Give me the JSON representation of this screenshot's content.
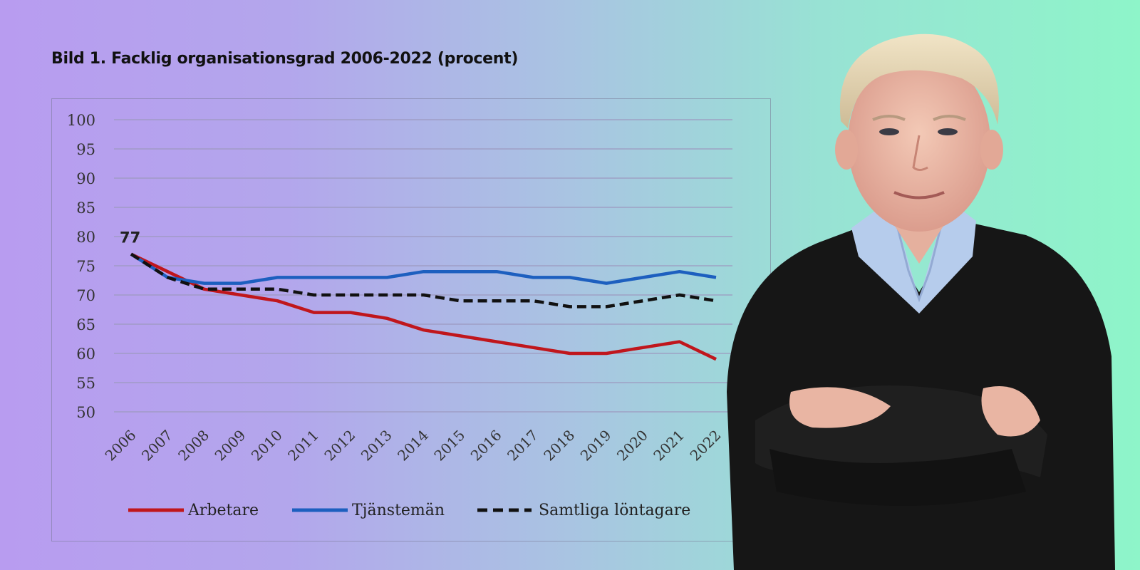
{
  "chart_data": {
    "type": "line",
    "title": "Bild 1. Facklig organisationsgrad 2006-2022 (procent)",
    "x": [
      "2006",
      "2007",
      "2008",
      "2009",
      "2010",
      "2011",
      "2012",
      "2013",
      "2014",
      "2015",
      "2016",
      "2017",
      "2018",
      "2019",
      "2020",
      "2021",
      "2022"
    ],
    "ylim": [
      50,
      100
    ],
    "yticks": [
      100,
      95,
      90,
      85,
      80,
      75,
      70,
      65,
      60,
      55,
      50
    ],
    "grid": true,
    "legend_position": "bottom",
    "series": [
      {
        "name": "Arbetare",
        "color": "#c0161c",
        "style": "solid",
        "values": [
          77,
          74,
          71,
          70,
          69,
          67,
          67,
          66,
          64,
          63,
          62,
          61,
          60,
          60,
          61,
          62,
          59
        ]
      },
      {
        "name": "Tjänstemän",
        "color": "#1d5fbf",
        "style": "solid",
        "values": [
          77,
          73,
          72,
          72,
          73,
          73,
          73,
          73,
          74,
          74,
          74,
          73,
          73,
          72,
          73,
          74,
          73
        ]
      },
      {
        "name": "Samtliga löntagare",
        "color": "#111111",
        "style": "dashed",
        "values": [
          77,
          73,
          71,
          71,
          71,
          70,
          70,
          70,
          70,
          69,
          69,
          69,
          68,
          68,
          69,
          70,
          69
        ]
      }
    ],
    "annotations": [
      {
        "x": "2006",
        "text": "77"
      }
    ]
  },
  "photo": {
    "icon": "man-portrait-icon"
  }
}
